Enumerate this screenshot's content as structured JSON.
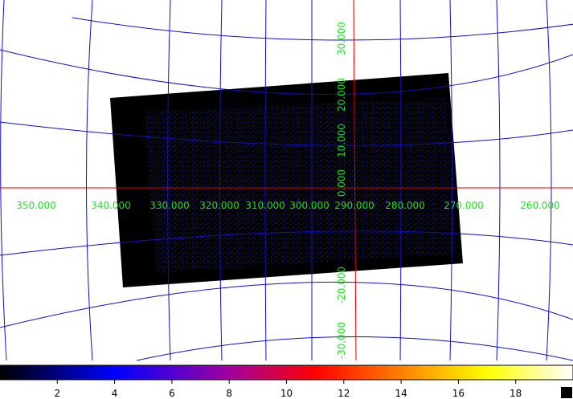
{
  "image": {
    "ra_labels": [
      "350.000",
      "340.000",
      "330.000",
      "320.000",
      "310.000",
      "300.000",
      "290.000",
      "280.000",
      "270.000",
      "260.000"
    ],
    "dec_labels": [
      "30.000",
      "20.000",
      "10.000",
      "0.000",
      "-20.000",
      "-30.000"
    ]
  },
  "colorbar": {
    "range": [
      0,
      20
    ],
    "ticks": [
      2,
      4,
      6,
      8,
      10,
      12,
      14,
      16,
      18
    ]
  }
}
